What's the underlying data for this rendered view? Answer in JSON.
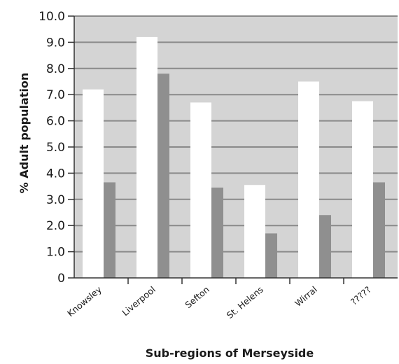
{
  "chart_data": {
    "type": "bar",
    "xlabel": "Sub-regions of Merseyside",
    "ylabel": "% Adult population",
    "ylim": [
      0,
      10
    ],
    "yticks": [
      "0",
      "1.0",
      "2.0",
      "3.0",
      "4.0",
      "5.0",
      "6.0",
      "7.0",
      "8.0",
      "9.0",
      "10.0"
    ],
    "categories": [
      "Knowsley",
      "Liverpool",
      "Sefton",
      "St. Helens",
      "Wirral",
      "?????"
    ],
    "series": [
      {
        "values": [
          7.2,
          9.2,
          6.7,
          3.55,
          7.5,
          6.75
        ]
      },
      {
        "values": [
          3.65,
          7.8,
          3.45,
          1.7,
          2.4,
          3.65
        ]
      }
    ],
    "colors": {
      "plot_background": "#d4d4d4",
      "gridline": "#8a8a8a",
      "series_1": "#ffffff",
      "series_2": "#8f8f8f"
    },
    "grid": true,
    "legend": "none"
  }
}
